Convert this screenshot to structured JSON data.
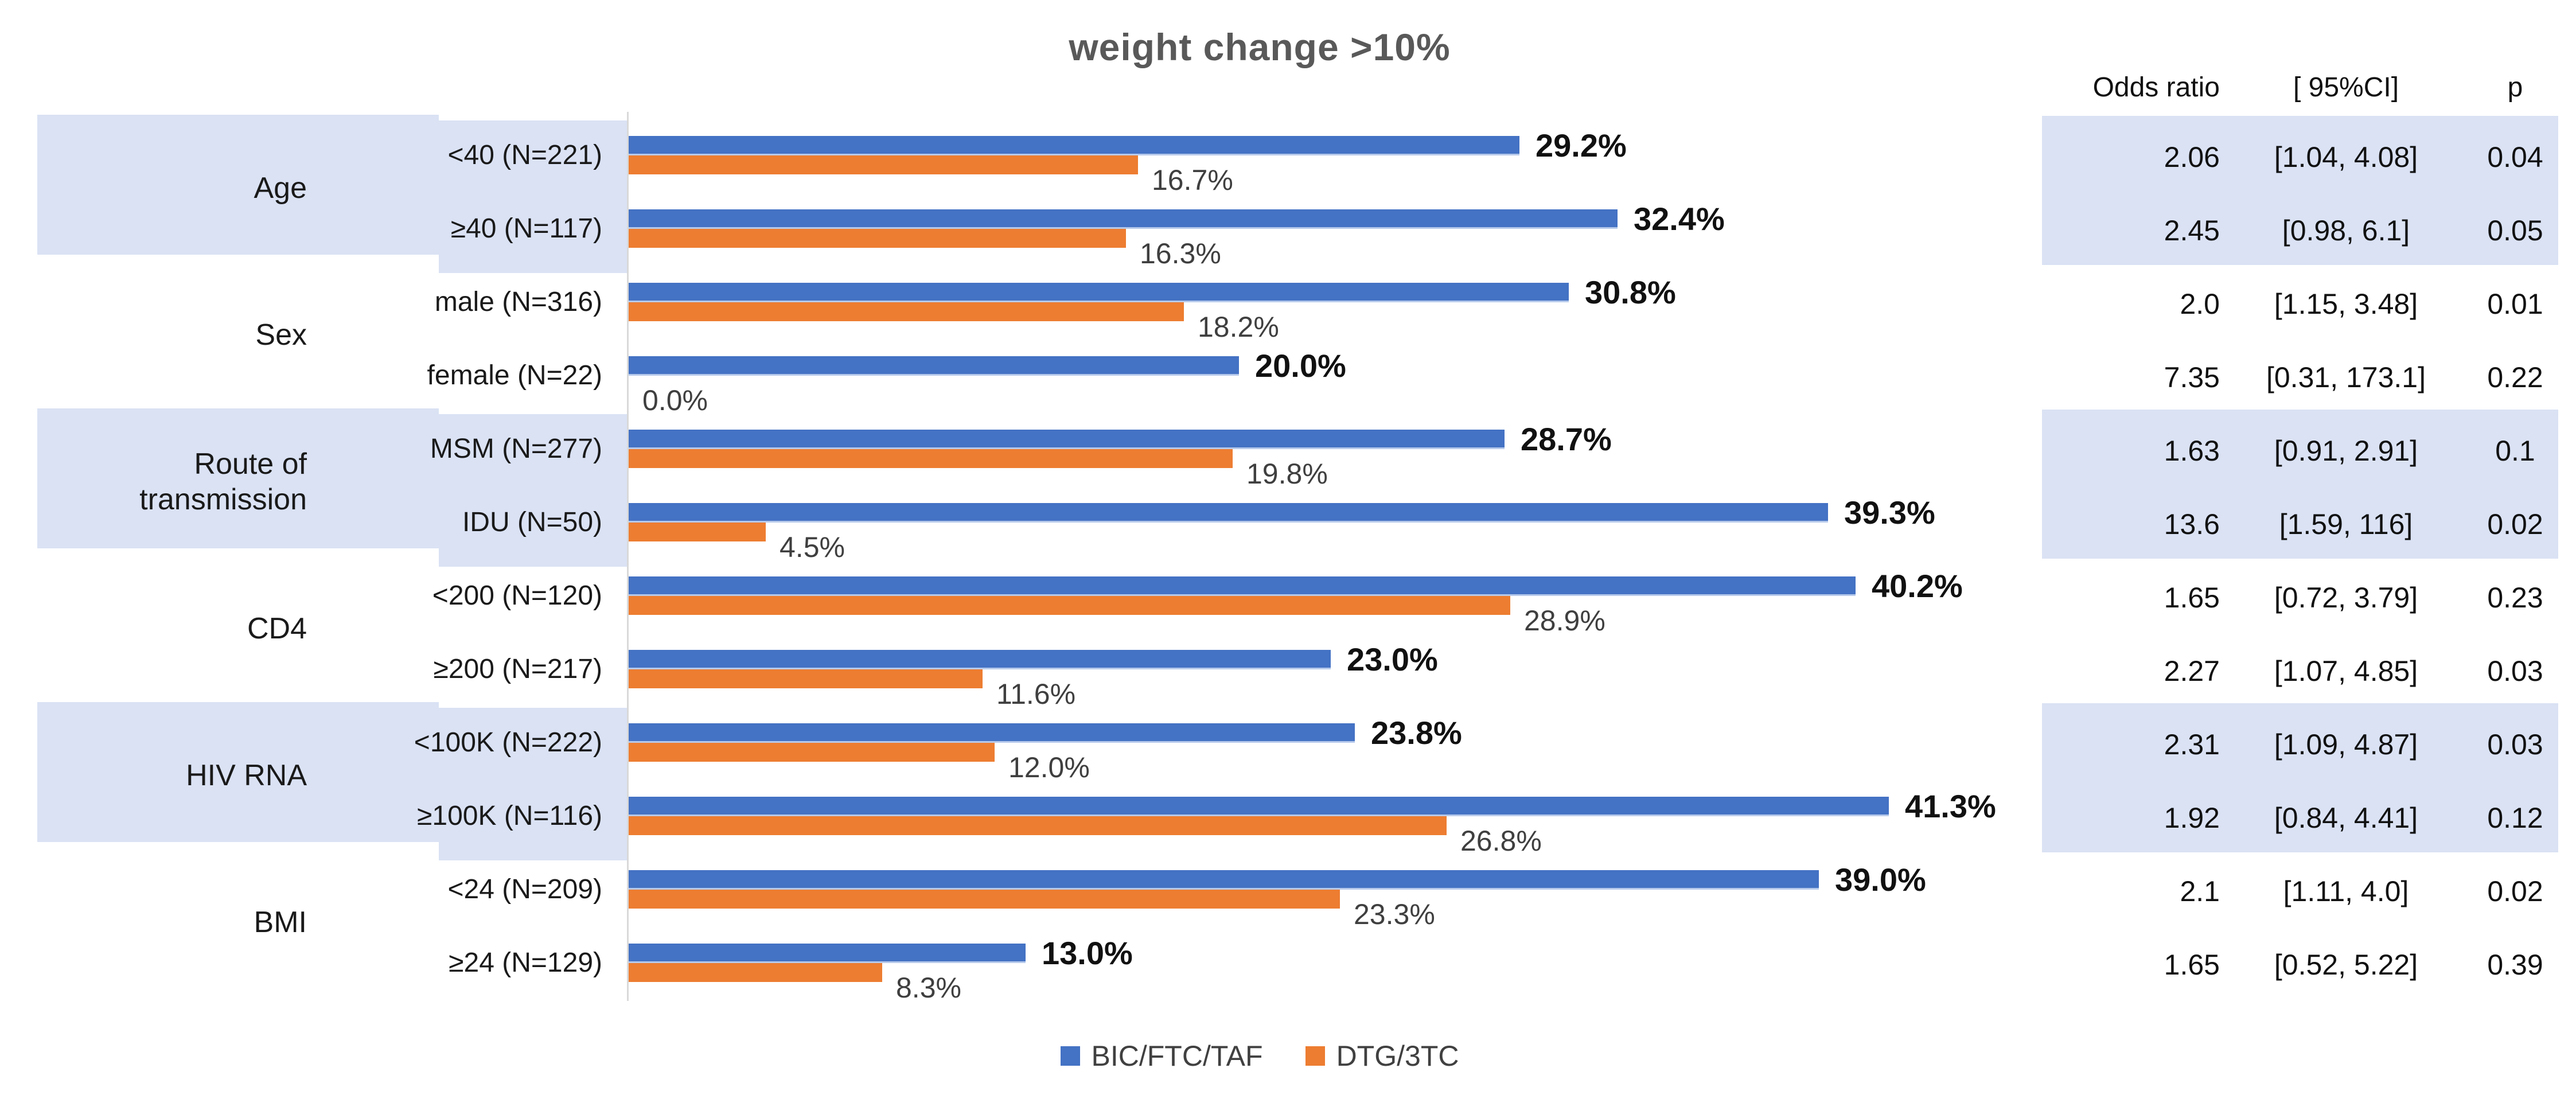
{
  "title": "weight change >10%",
  "colors": {
    "series_blue": "#4472C4",
    "series_orange": "#ED7D31",
    "highlight_band": "#DAE2F4",
    "axis_line": "#D9D9D9",
    "title_text": "#595959"
  },
  "table": {
    "headers": [
      "Odds ratio",
      "[ 95%CI]",
      "p"
    ]
  },
  "legend": {
    "items": [
      {
        "label": "BIC/FTC/TAF",
        "color": "#4472C4"
      },
      {
        "label": "DTG/3TC",
        "color": "#ED7D31"
      }
    ]
  },
  "chart_data": {
    "type": "bar",
    "orientation": "horizontal",
    "title": "weight change >10%",
    "xlabel": "",
    "ylabel": "",
    "xlim_percent": [
      0,
      42.5
    ],
    "grid": false,
    "legend_position": "bottom",
    "series_names": [
      "BIC/FTC/TAF",
      "DTG/3TC"
    ],
    "groups": [
      {
        "group": "Age",
        "highlight": true,
        "rows": [
          {
            "label": "<40 (N=221)",
            "bic": 29.2,
            "bic_label": "29.2%",
            "dtg": 16.7,
            "dtg_label": "16.7%",
            "or": "2.06",
            "ci": "[1.04, 4.08]",
            "p": "0.04"
          },
          {
            "label": "≥40 (N=117)",
            "bic": 32.4,
            "bic_label": "32.4%",
            "dtg": 16.3,
            "dtg_label": "16.3%",
            "or": "2.45",
            "ci": "[0.98, 6.1]",
            "p": "0.05"
          }
        ]
      },
      {
        "group": "Sex",
        "highlight": false,
        "rows": [
          {
            "label": "male (N=316)",
            "bic": 30.8,
            "bic_label": "30.8%",
            "dtg": 18.2,
            "dtg_label": "18.2%",
            "or": "2.0",
            "ci": "[1.15, 3.48]",
            "p": "0.01"
          },
          {
            "label": "female (N=22)",
            "bic": 20.0,
            "bic_label": "20.0%",
            "dtg": 0.0,
            "dtg_label": "0.0%",
            "or": "7.35",
            "ci": "[0.31, 173.1]",
            "p": "0.22"
          }
        ]
      },
      {
        "group": "Route of transmission",
        "group_lines": [
          "Route of",
          "transmission"
        ],
        "highlight": true,
        "rows": [
          {
            "label": "MSM (N=277)",
            "bic": 28.7,
            "bic_label": "28.7%",
            "dtg": 19.8,
            "dtg_label": "19.8%",
            "or": "1.63",
            "ci": "[0.91, 2.91]",
            "p": "0.1"
          },
          {
            "label": "IDU (N=50)",
            "bic": 39.3,
            "bic_label": "39.3%",
            "dtg": 4.5,
            "dtg_label": "4.5%",
            "or": "13.6",
            "ci": "[1.59, 116]",
            "p": "0.02"
          }
        ]
      },
      {
        "group": "CD4",
        "highlight": false,
        "rows": [
          {
            "label": "<200 (N=120)",
            "bic": 40.2,
            "bic_label": "40.2%",
            "dtg": 28.9,
            "dtg_label": "28.9%",
            "or": "1.65",
            "ci": "[0.72, 3.79]",
            "p": "0.23"
          },
          {
            "label": "≥200 (N=217)",
            "bic": 23.0,
            "bic_label": "23.0%",
            "dtg": 11.6,
            "dtg_label": "11.6%",
            "or": "2.27",
            "ci": "[1.07, 4.85]",
            "p": "0.03"
          }
        ]
      },
      {
        "group": "HIV RNA",
        "highlight": true,
        "rows": [
          {
            "label": "<100K (N=222)",
            "bic": 23.8,
            "bic_label": "23.8%",
            "dtg": 12.0,
            "dtg_label": "12.0%",
            "or": "2.31",
            "ci": "[1.09, 4.87]",
            "p": "0.03"
          },
          {
            "label": "≥100K (N=116)",
            "bic": 41.3,
            "bic_label": "41.3%",
            "dtg": 26.8,
            "dtg_label": "26.8%",
            "or": "1.92",
            "ci": "[0.84, 4.41]",
            "p": "0.12"
          }
        ]
      },
      {
        "group": "BMI",
        "highlight": false,
        "rows": [
          {
            "label": "<24 (N=209)",
            "bic": 39.0,
            "bic_label": "39.0%",
            "dtg": 23.3,
            "dtg_label": "23.3%",
            "or": "2.1",
            "ci": "[1.11, 4.0]",
            "p": "0.02"
          },
          {
            "label": "≥24 (N=129)",
            "bic": 13.0,
            "bic_label": "13.0%",
            "dtg": 8.3,
            "dtg_label": "8.3%",
            "or": "1.65",
            "ci": "[0.52, 5.22]",
            "p": "0.39"
          }
        ]
      }
    ]
  }
}
